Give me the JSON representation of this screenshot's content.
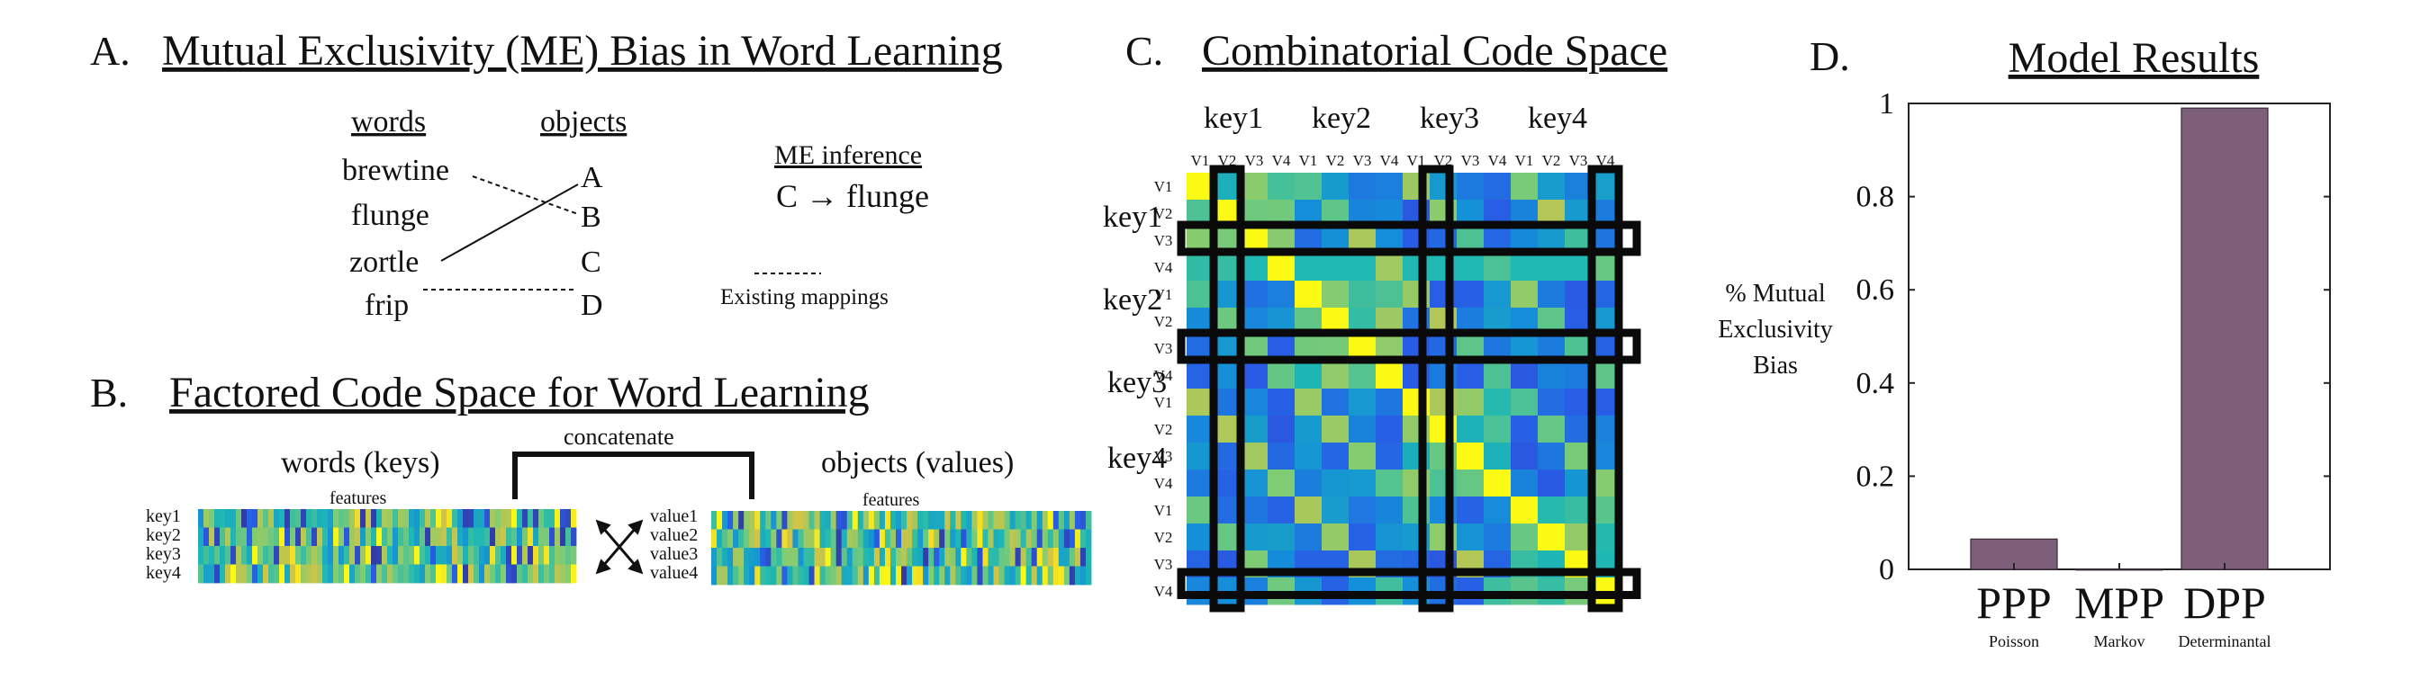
{
  "panel_a": {
    "letter": "A.",
    "title": "Mutual Exclusivity (ME) Bias in Word Learning",
    "words_header": "words",
    "objects_header": "objects",
    "words": [
      "brewtine",
      "flunge",
      "zortle",
      "frip"
    ],
    "objects": [
      "A",
      "B",
      "C",
      "D"
    ],
    "inference_title": "ME inference",
    "inference_text": "C → flunge",
    "legend_label": "Existing mappings"
  },
  "panel_b": {
    "letter": "B.",
    "title": "Factored Code Space for Word Learning",
    "concatenate_label": "concatenate",
    "words_keys_label": "words (keys)",
    "objects_values_label": "objects (values)",
    "features_label": "features",
    "key_rows": [
      "key1",
      "key2",
      "key3",
      "key4"
    ],
    "value_rows": [
      "value1",
      "value2",
      "value3",
      "value4"
    ]
  },
  "panel_c": {
    "letter": "C.",
    "title": "Combinatorial Code Space",
    "key_labels": [
      "key1",
      "key2",
      "key3",
      "key4"
    ],
    "sub_labels": [
      "V1",
      "V2",
      "V3",
      "V4"
    ]
  },
  "panel_d": {
    "letter": "D.",
    "title": "Model Results",
    "ylabel_lines": [
      "% Mutual",
      "Exclusivity",
      "Bias"
    ]
  },
  "chart_data": {
    "type": "bar",
    "title": "Model Results",
    "categories": [
      "PPP",
      "MPP",
      "DPP"
    ],
    "category_sublabels": [
      "Poisson",
      "Markov",
      "Determinantal"
    ],
    "values": [
      0.065,
      0.0,
      0.99
    ],
    "ylabel": "% Mutual Exclusivity Bias",
    "ylim": [
      0,
      1
    ],
    "yticks": [
      "0",
      "0.2",
      "0.4",
      "0.6",
      "0.8",
      "1"
    ],
    "bar_color": "#7e5f7a",
    "grid": false
  },
  "colors": {
    "low": "#3b3fd6",
    "mid": "#1fb6c4",
    "high": "#f5e21d",
    "bar": "#7e5f7a"
  }
}
